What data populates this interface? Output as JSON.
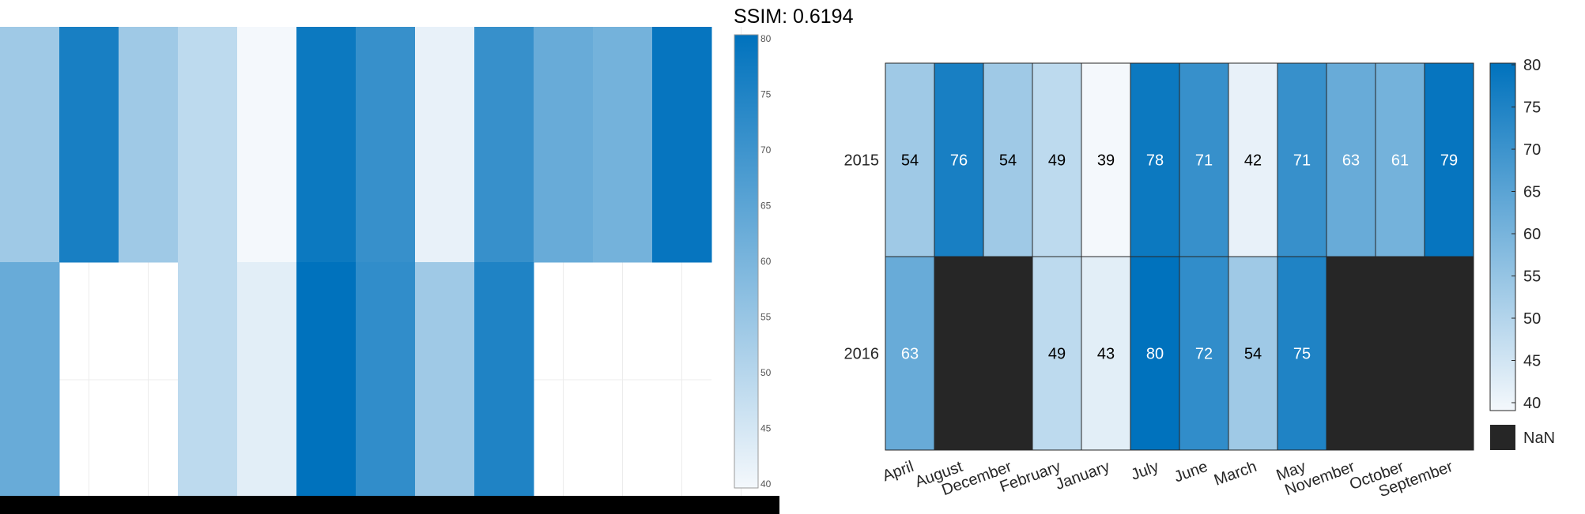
{
  "ssim_label": "SSIM: 0.6194",
  "chart_data": [
    {
      "type": "heatmap",
      "panel": "left-render",
      "x_categories": [
        "April",
        "August",
        "December",
        "February",
        "January",
        "July",
        "June",
        "March",
        "May",
        "November",
        "October",
        "September"
      ],
      "y_categories": [
        "2015",
        "2016"
      ],
      "values": [
        [
          54,
          76,
          54,
          49,
          39,
          78,
          71,
          42,
          71,
          63,
          61,
          79
        ],
        [
          63,
          null,
          null,
          49,
          43,
          80,
          72,
          54,
          75,
          null,
          null,
          null
        ]
      ],
      "colorbar": {
        "min": 40,
        "max": 80,
        "ticks": [
          40,
          45,
          50,
          55,
          60,
          65,
          70,
          75,
          80
        ]
      },
      "colors": {
        "low": "#f4f8fc",
        "high": "#0072bd",
        "missing": "#ffffff"
      },
      "grid": true
    },
    {
      "type": "heatmap",
      "panel": "right-reference",
      "x_categories": [
        "April",
        "August",
        "December",
        "February",
        "January",
        "July",
        "June",
        "March",
        "May",
        "November",
        "October",
        "September"
      ],
      "y_categories": [
        "2015",
        "2016"
      ],
      "values": [
        [
          54,
          76,
          54,
          49,
          39,
          78,
          71,
          42,
          71,
          63,
          61,
          79
        ],
        [
          63,
          null,
          null,
          49,
          43,
          80,
          72,
          54,
          75,
          null,
          null,
          null
        ]
      ],
      "colorbar": {
        "min": 40,
        "max": 80,
        "ticks": [
          40,
          45,
          50,
          55,
          60,
          65,
          70,
          75,
          80
        ]
      },
      "missing_label": "NaN",
      "colors": {
        "low": "#f4f8fc",
        "high": "#0072bd",
        "missing": "#262626",
        "label_dark": "#000000",
        "label_light": "#ffffff"
      }
    }
  ]
}
